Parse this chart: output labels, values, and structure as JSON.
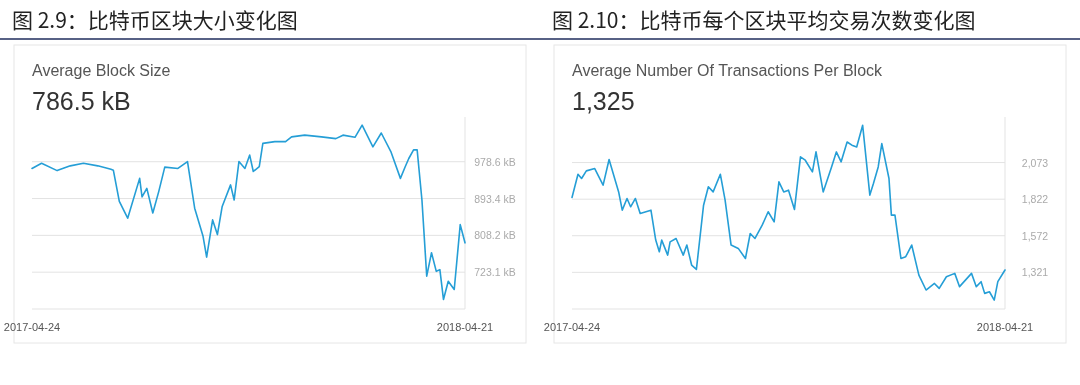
{
  "chart_data": [
    {
      "type": "line",
      "title": "图 2.9：比特币区块大小变化图",
      "subtitle": "Average Block Size",
      "annotations": [
        "786.5 kB"
      ],
      "x": [
        "2017-04-24",
        "2017-05-02",
        "2017-05-15",
        "2017-05-26",
        "2017-06-06",
        "2017-06-18",
        "2017-06-29",
        "2017-07-01",
        "2017-07-06",
        "2017-07-13",
        "2017-07-23",
        "2017-07-25",
        "2017-07-29",
        "2017-08-03",
        "2017-08-08",
        "2017-08-13",
        "2017-08-24",
        "2017-09-01",
        "2017-09-07",
        "2017-09-14",
        "2017-09-17",
        "2017-09-22",
        "2017-09-26",
        "2017-09-30",
        "2017-10-07",
        "2017-10-10",
        "2017-10-14",
        "2017-10-19",
        "2017-10-23",
        "2017-10-26",
        "2017-10-31",
        "2017-11-03",
        "2017-11-13",
        "2017-11-22",
        "2017-11-27",
        "2017-12-08",
        "2017-12-22",
        "2018-01-03",
        "2018-01-09",
        "2018-01-19",
        "2018-01-25",
        "2018-02-03",
        "2018-02-10",
        "2018-02-18",
        "2018-02-26",
        "2018-03-02",
        "2018-03-05",
        "2018-03-09",
        "2018-03-12",
        "2018-03-16",
        "2018-03-20",
        "2018-03-24",
        "2018-03-28",
        "2018-03-31",
        "2018-04-03",
        "2018-04-07",
        "2018-04-12",
        "2018-04-17",
        "2018-04-21"
      ],
      "series": [
        {
          "color": "#259ed6",
          "values": [
            963,
            975,
            958,
            969,
            975,
            969,
            961,
            959,
            887,
            848,
            940,
            897,
            917,
            860,
            910,
            966,
            963,
            979,
            871,
            806,
            758,
            844,
            810,
            875,
            925,
            890,
            979,
            963,
            994,
            956,
            967,
            1021,
            1025,
            1025,
            1036,
            1040,
            1036,
            1032,
            1040,
            1035,
            1063,
            1013,
            1045,
            1002,
            940,
            967,
            986,
            1006,
            1006,
            890,
            714,
            768,
            725,
            729,
            660,
            702,
            683,
            833,
            791
          ]
        }
      ],
      "xlim": [
        "2017-04-24",
        "2018-04-21"
      ],
      "xticks": [
        "2017-04-24",
        "2018-04-21"
      ],
      "ylim": [
        637.9,
        1082
      ],
      "yticks": [
        {
          "value": 723.1,
          "label": "723.1 kB"
        },
        {
          "value": 808.2,
          "label": "808.2 kB"
        },
        {
          "value": 893.4,
          "label": "893.4 kB"
        },
        {
          "value": 978.6,
          "label": "978.6 kB"
        }
      ],
      "grid": "y"
    },
    {
      "type": "line",
      "title": "图 2.10：比特币每个区块平均交易次数变化图",
      "subtitle": "Average Number Of Transactions Per Block",
      "annotations": [
        "1,325"
      ],
      "x": [
        "2017-04-24",
        "2017-04-29",
        "2017-05-02",
        "2017-05-06",
        "2017-05-13",
        "2017-05-20",
        "2017-05-25",
        "2017-06-02",
        "2017-06-05",
        "2017-06-09",
        "2017-06-12",
        "2017-06-16",
        "2017-06-20",
        "2017-06-29",
        "2017-07-03",
        "2017-07-06",
        "2017-07-08",
        "2017-07-13",
        "2017-07-15",
        "2017-07-20",
        "2017-07-26",
        "2017-07-29",
        "2017-08-02",
        "2017-08-06",
        "2017-08-12",
        "2017-08-16",
        "2017-08-20",
        "2017-08-26",
        "2017-08-30",
        "2017-09-04",
        "2017-09-10",
        "2017-09-16",
        "2017-09-20",
        "2017-09-24",
        "2017-09-30",
        "2017-10-05",
        "2017-10-10",
        "2017-10-14",
        "2017-10-18",
        "2017-10-22",
        "2017-10-27",
        "2017-11-01",
        "2017-11-05",
        "2017-11-11",
        "2017-11-14",
        "2017-11-20",
        "2017-11-27",
        "2017-12-01",
        "2017-12-05",
        "2017-12-10",
        "2017-12-14",
        "2017-12-18",
        "2017-12-23",
        "2017-12-29",
        "2018-01-01",
        "2018-01-05",
        "2018-01-08",
        "2018-01-14",
        "2018-01-16",
        "2018-01-19",
        "2018-01-24",
        "2018-01-28",
        "2018-02-02",
        "2018-02-08",
        "2018-02-14",
        "2018-02-21",
        "2018-02-25",
        "2018-03-03",
        "2018-03-10",
        "2018-03-14",
        "2018-03-24",
        "2018-03-28",
        "2018-04-01",
        "2018-04-04",
        "2018-04-08",
        "2018-04-12",
        "2018-04-15",
        "2018-04-21"
      ],
      "series": [
        {
          "color": "#259ed6",
          "values": [
            1834,
            1993,
            1964,
            2016,
            2032,
            1918,
            2094,
            1872,
            1747,
            1827,
            1770,
            1827,
            1724,
            1747,
            1542,
            1462,
            1542,
            1439,
            1530,
            1553,
            1439,
            1508,
            1371,
            1341,
            1781,
            1907,
            1872,
            1993,
            1815,
            1508,
            1485,
            1416,
            1587,
            1553,
            1644,
            1736,
            1667,
            1941,
            1872,
            1884,
            1752,
            2112,
            2089,
            2009,
            2146,
            1872,
            2043,
            2146,
            2078,
            2214,
            2192,
            2180,
            2328,
            1850,
            1929,
            2043,
            2203,
            1964,
            1713,
            1713,
            1416,
            1428,
            1508,
            1302,
            1200,
            1245,
            1211,
            1291,
            1314,
            1223,
            1314,
            1223,
            1257,
            1177,
            1188,
            1131,
            1257,
            1337
          ]
        }
      ],
      "xlim": [
        "2017-04-24",
        "2018-04-21"
      ],
      "xticks": [
        "2017-04-24",
        "2018-04-21"
      ],
      "ylim": [
        1070,
        2385
      ],
      "yticks": [
        {
          "value": 1321,
          "label": "1,321"
        },
        {
          "value": 1572,
          "label": "1,572"
        },
        {
          "value": 1822,
          "label": "1,822"
        },
        {
          "value": 2073,
          "label": "2,073"
        }
      ],
      "grid": "y"
    }
  ]
}
